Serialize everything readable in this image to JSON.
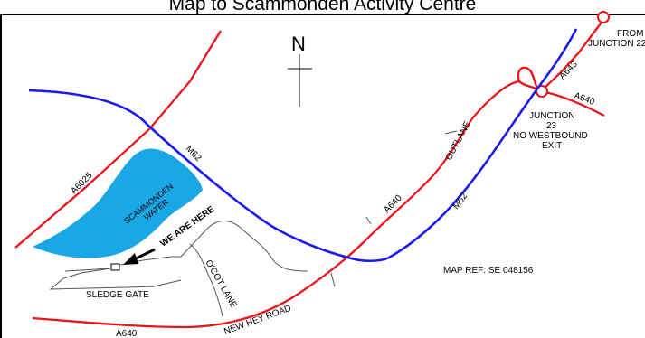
{
  "title": "Map to Scammonden Activity Centre",
  "compass": {
    "north_label": "N"
  },
  "colors": {
    "a_road": "#e8151b",
    "motorway": "#1a1aee",
    "water": "#1aa7e6",
    "minor_road": "#555555",
    "frame": "#000000"
  },
  "roads": {
    "a6025": "A6025",
    "m62_west": "M62",
    "m62_east": "M62",
    "a640_upper": "A640",
    "a640_lower": "A640",
    "a640_junction": "A640",
    "a643": "A643",
    "outlane": "OUTLANE",
    "new_hey_road": "NEW HEY ROAD",
    "o_cot_lane": "O'COT LANE",
    "sledge_gate": "SLEDGE GATE"
  },
  "water": {
    "line1": "SCAMMONDEN",
    "line2": "WATER"
  },
  "markers": {
    "we_are_here": "WE ARE HERE"
  },
  "junction": {
    "from_line1": "FROM",
    "from_line2": "JUNCTION 22",
    "j23_line1": "JUNCTION",
    "j23_line2": "23",
    "j23_line3": "NO WESTBOUND",
    "j23_line4": "EXIT"
  },
  "map_ref": "MAP REF: SE 048156"
}
